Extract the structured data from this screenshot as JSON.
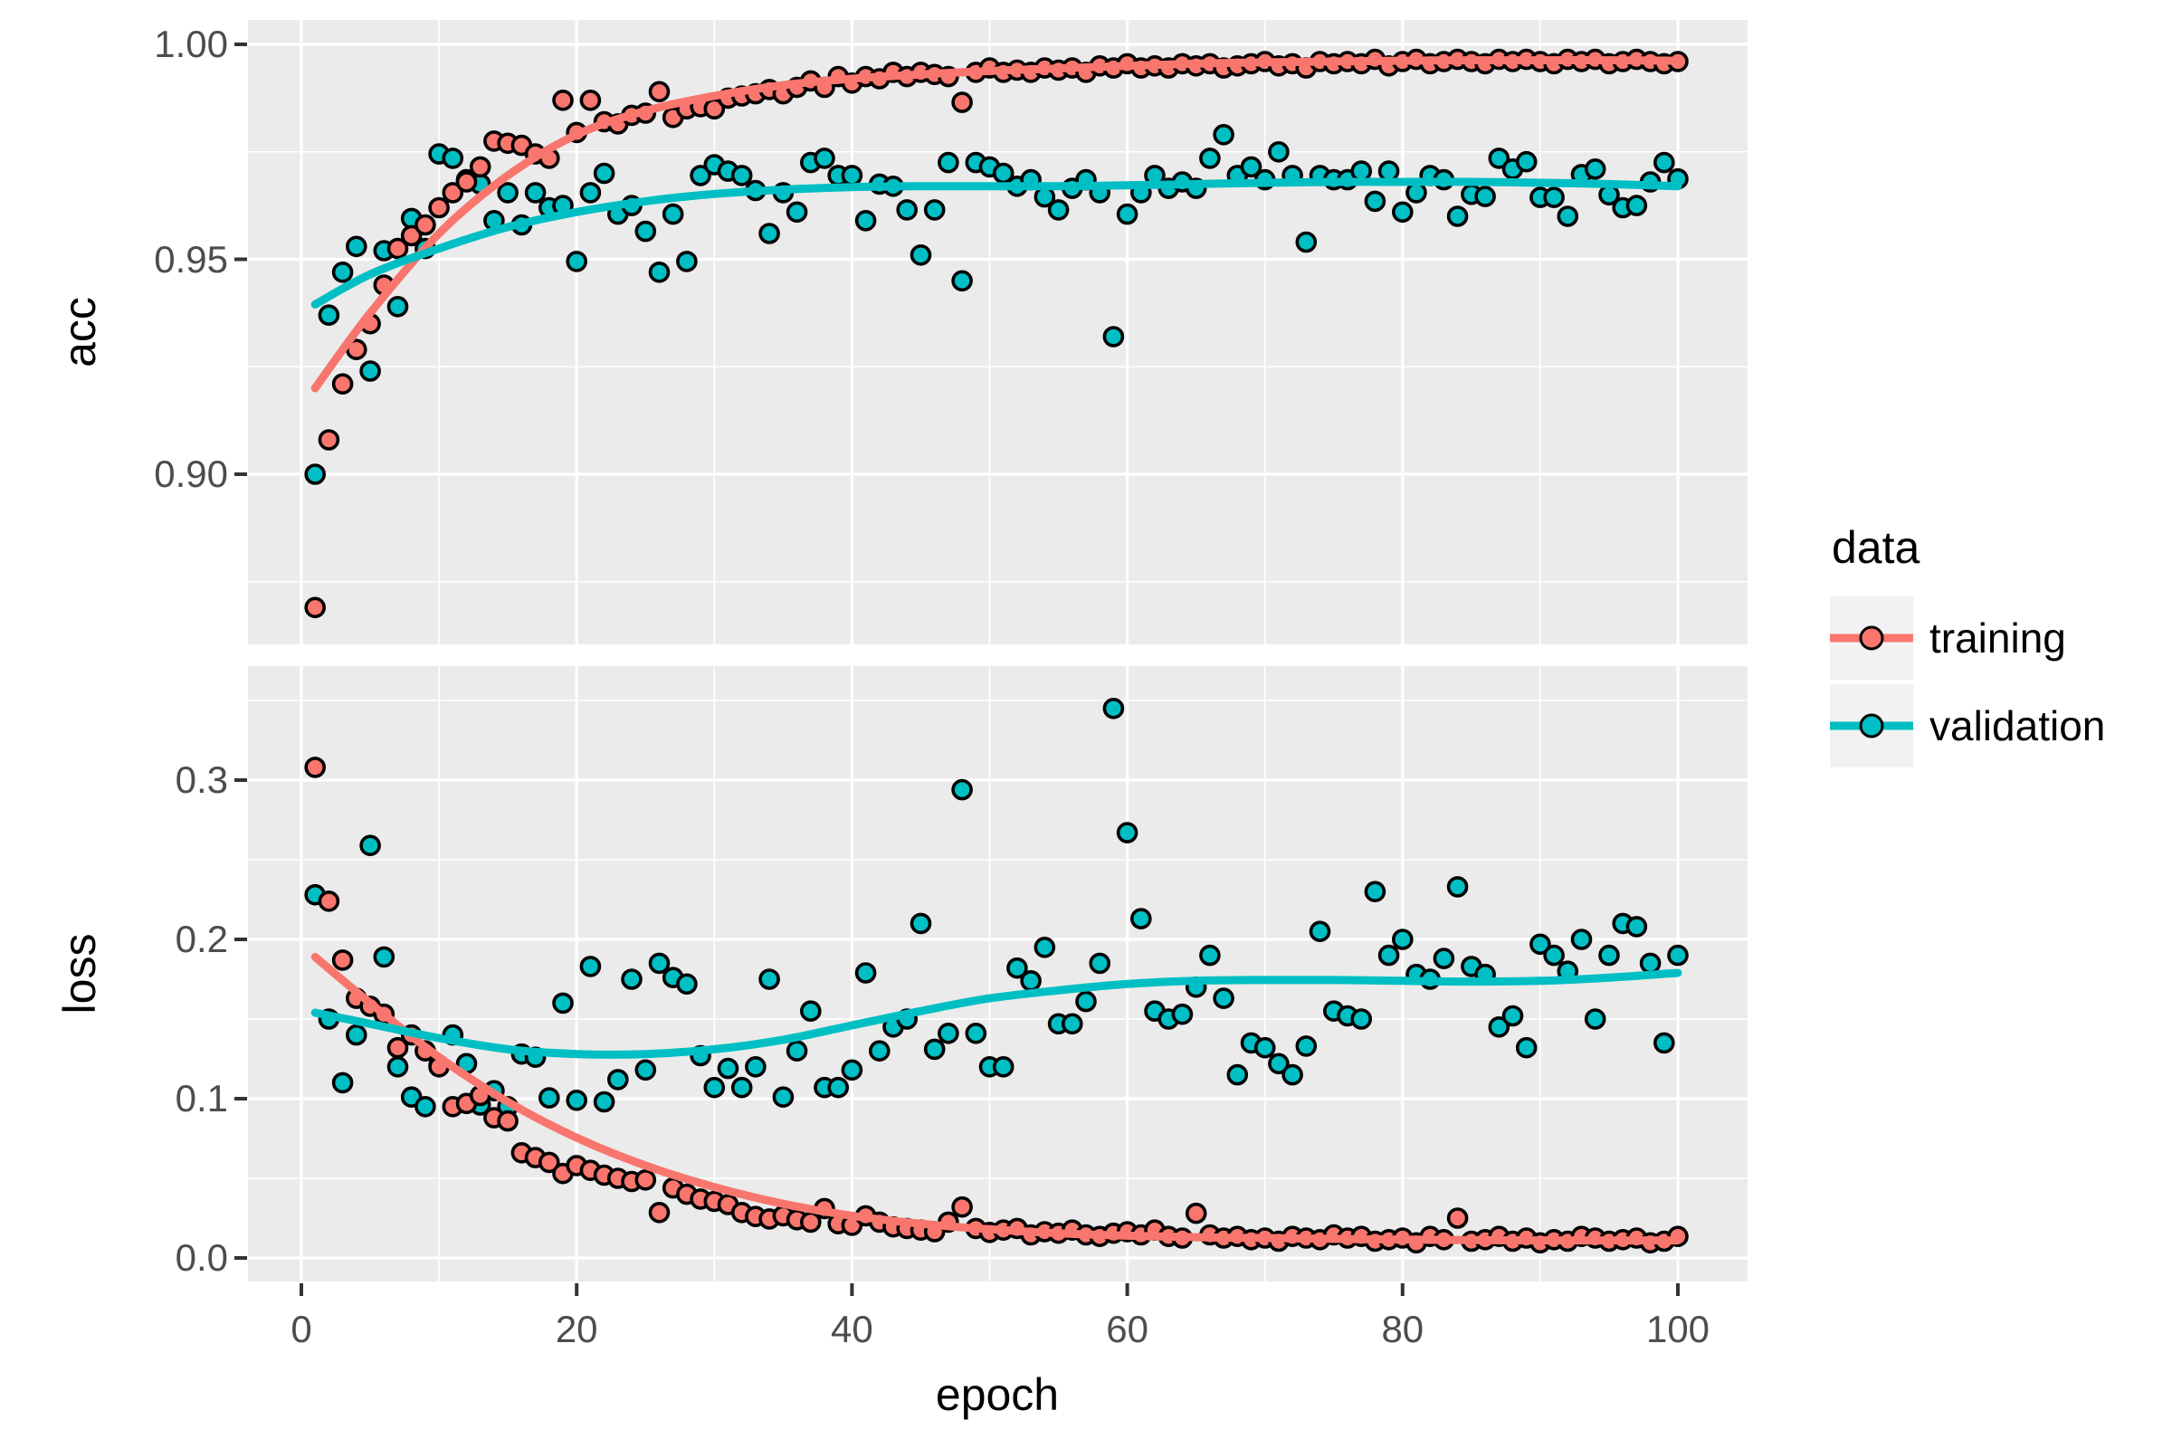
{
  "colors": {
    "training": "#F8766D",
    "validation": "#00BFC4",
    "panel_background": "#EBEBEB",
    "grid": "#FFFFFF",
    "tick_label": "#4D4D4D",
    "tick_mark": "#333333",
    "point_stroke": "#000000",
    "legend_key_background": "#F2F2F2",
    "text": "#000000"
  },
  "legend": {
    "title": "data",
    "items": [
      {
        "label": "training",
        "color": "#F8766D"
      },
      {
        "label": "validation",
        "color": "#00BFC4"
      }
    ]
  },
  "axes": {
    "x": {
      "title": "epoch",
      "tick_labels": [
        "0",
        "20",
        "40",
        "60",
        "80",
        "100"
      ],
      "tick_values": [
        0,
        20,
        40,
        60,
        80,
        100
      ],
      "minor_values": [
        10,
        30,
        50,
        70,
        90
      ],
      "range": [
        1,
        100
      ]
    },
    "facets": [
      {
        "label": "acc",
        "tick_labels": [
          "1.00",
          "0.95",
          "0.90"
        ],
        "tick_values": [
          1.0,
          0.95,
          0.9
        ],
        "minor_values": [
          0.975,
          0.925,
          0.875
        ],
        "approx_limits": [
          0.86,
          1.006
        ]
      },
      {
        "label": "loss",
        "tick_labels": [
          "0.3",
          "0.2",
          "0.1",
          "0.0"
        ],
        "tick_values": [
          0.3,
          0.2,
          0.1,
          0.0
        ],
        "minor_values": [
          0.35,
          0.25,
          0.15,
          0.05
        ],
        "approx_limits": [
          -0.015,
          0.372
        ]
      }
    ]
  },
  "chart_data": [
    {
      "facet": "acc",
      "type": "scatter",
      "smoother": "loess",
      "grid": "on",
      "epoch_min": 1,
      "epoch_max": 100,
      "series": [
        {
          "name": "training",
          "color": "#F8766D",
          "values": [
            0.869,
            0.908,
            0.921,
            0.929,
            0.935,
            0.944,
            0.9525,
            0.9555,
            0.958,
            0.962,
            0.9655,
            0.968,
            0.9715,
            0.9775,
            0.977,
            0.9765,
            0.9745,
            0.9735,
            0.987,
            0.9795,
            0.987,
            0.982,
            0.9815,
            0.9835,
            0.984,
            0.989,
            0.983,
            0.985,
            0.9855,
            0.985,
            0.9875,
            0.988,
            0.9885,
            0.9895,
            0.9885,
            0.99,
            0.9915,
            0.99,
            0.9925,
            0.991,
            0.9925,
            0.992,
            0.9935,
            0.9925,
            0.9935,
            0.993,
            0.9925,
            0.9865,
            0.9935,
            0.9945,
            0.9935,
            0.994,
            0.9935,
            0.9945,
            0.994,
            0.9945,
            0.9935,
            0.995,
            0.9945,
            0.9955,
            0.9945,
            0.995,
            0.9945,
            0.9955,
            0.995,
            0.9955,
            0.9945,
            0.995,
            0.9955,
            0.996,
            0.995,
            0.9955,
            0.9945,
            0.996,
            0.9955,
            0.996,
            0.9955,
            0.9965,
            0.995,
            0.996,
            0.9965,
            0.9955,
            0.996,
            0.9965,
            0.996,
            0.9955,
            0.9965,
            0.996,
            0.9965,
            0.996,
            0.9955,
            0.9965,
            0.996,
            0.9965,
            0.9955,
            0.996,
            0.9965,
            0.996,
            0.9955,
            0.996
          ]
        },
        {
          "name": "validation",
          "color": "#00BFC4",
          "values": [
            0.9,
            0.937,
            0.947,
            0.953,
            0.924,
            0.952,
            0.939,
            0.9595,
            0.9525,
            0.9745,
            0.9735,
            0.9685,
            0.9675,
            0.959,
            0.9655,
            0.958,
            0.9655,
            0.962,
            0.9625,
            0.9495,
            0.9655,
            0.97,
            0.9605,
            0.9625,
            0.9565,
            0.947,
            0.9605,
            0.9495,
            0.9695,
            0.972,
            0.9705,
            0.9695,
            0.966,
            0.956,
            0.9655,
            0.961,
            0.9725,
            0.9735,
            0.9695,
            0.9695,
            0.959,
            0.9675,
            0.967,
            0.9615,
            0.951,
            0.9615,
            0.9725,
            0.945,
            0.9725,
            0.9715,
            0.97,
            0.967,
            0.9685,
            0.9645,
            0.9615,
            0.9665,
            0.9685,
            0.9655,
            0.932,
            0.9605,
            0.9655,
            0.9695,
            0.9665,
            0.968,
            0.9665,
            0.9735,
            0.979,
            0.9695,
            0.9715,
            0.9685,
            0.975,
            0.9695,
            0.954,
            0.9695,
            0.9685,
            0.9685,
            0.9705,
            0.9635,
            0.9705,
            0.961,
            0.9655,
            0.9695,
            0.9685,
            0.96,
            0.9651,
            0.9646,
            0.9735,
            0.971,
            0.9727,
            0.9644,
            0.9644,
            0.96,
            0.9697,
            0.971,
            0.965,
            0.962,
            0.9625,
            0.968,
            0.9725,
            0.9687
          ]
        }
      ],
      "smooth": {
        "x": [
          1,
          5,
          10,
          15,
          20,
          25,
          30,
          35,
          40,
          45,
          50,
          55,
          60,
          65,
          70,
          75,
          80,
          85,
          90,
          95,
          100
        ],
        "training": [
          0.92,
          0.9375,
          0.956,
          0.9695,
          0.979,
          0.9845,
          0.988,
          0.9905,
          0.992,
          0.993,
          0.9938,
          0.9944,
          0.995,
          0.9955,
          0.9958,
          0.996,
          0.9962,
          0.9963,
          0.9963,
          0.9963,
          0.9962
        ],
        "validation": [
          0.9395,
          0.9465,
          0.9525,
          0.9575,
          0.961,
          0.9635,
          0.9652,
          0.9662,
          0.9668,
          0.967,
          0.967,
          0.967,
          0.9672,
          0.9675,
          0.9678,
          0.968,
          0.968,
          0.968,
          0.9678,
          0.9675,
          0.967
        ]
      }
    },
    {
      "facet": "loss",
      "type": "scatter",
      "smoother": "loess",
      "grid": "on",
      "epoch_min": 1,
      "epoch_max": 100,
      "series": [
        {
          "name": "training",
          "color": "#F8766D",
          "values": [
            0.308,
            0.224,
            0.187,
            0.163,
            0.158,
            0.153,
            0.132,
            0.14,
            0.13,
            0.12,
            0.095,
            0.097,
            0.102,
            0.088,
            0.086,
            0.066,
            0.063,
            0.06,
            0.053,
            0.058,
            0.055,
            0.052,
            0.05,
            0.048,
            0.049,
            0.0285,
            0.044,
            0.04,
            0.037,
            0.0355,
            0.0335,
            0.0285,
            0.026,
            0.0245,
            0.0265,
            0.024,
            0.0225,
            0.031,
            0.0215,
            0.0205,
            0.0265,
            0.0225,
            0.0195,
            0.0185,
            0.0175,
            0.0165,
            0.0225,
            0.032,
            0.0185,
            0.016,
            0.0175,
            0.0185,
            0.0145,
            0.0165,
            0.0155,
            0.0175,
            0.0145,
            0.0135,
            0.0155,
            0.0165,
            0.0145,
            0.0175,
            0.0135,
            0.0125,
            0.028,
            0.0145,
            0.0125,
            0.0135,
            0.0115,
            0.0125,
            0.0105,
            0.0135,
            0.0125,
            0.0115,
            0.0145,
            0.0125,
            0.0135,
            0.0105,
            0.0115,
            0.0125,
            0.0095,
            0.0135,
            0.0115,
            0.025,
            0.0105,
            0.0115,
            0.0135,
            0.0105,
            0.0125,
            0.0095,
            0.0115,
            0.0105,
            0.0135,
            0.0125,
            0.0105,
            0.0115,
            0.0125,
            0.0095,
            0.0105,
            0.0135
          ]
        },
        {
          "name": "validation",
          "color": "#00BFC4",
          "values": [
            0.228,
            0.15,
            0.11,
            0.14,
            0.259,
            0.189,
            0.12,
            0.101,
            0.095,
            0.121,
            0.14,
            0.122,
            0.096,
            0.105,
            0.095,
            0.128,
            0.126,
            0.1005,
            0.16,
            0.099,
            0.183,
            0.098,
            0.112,
            0.175,
            0.118,
            0.185,
            0.176,
            0.172,
            0.127,
            0.107,
            0.119,
            0.107,
            0.12,
            0.175,
            0.101,
            0.13,
            0.155,
            0.107,
            0.107,
            0.118,
            0.179,
            0.13,
            0.145,
            0.15,
            0.21,
            0.131,
            0.141,
            0.294,
            0.141,
            0.12,
            0.12,
            0.182,
            0.174,
            0.195,
            0.147,
            0.147,
            0.161,
            0.185,
            0.345,
            0.267,
            0.213,
            0.155,
            0.15,
            0.153,
            0.17,
            0.19,
            0.163,
            0.115,
            0.135,
            0.132,
            0.122,
            0.115,
            0.133,
            0.205,
            0.155,
            0.152,
            0.15,
            0.23,
            0.19,
            0.2,
            0.178,
            0.175,
            0.188,
            0.233,
            0.183,
            0.178,
            0.145,
            0.152,
            0.132,
            0.197,
            0.19,
            0.18,
            0.2,
            0.15,
            0.19,
            0.21,
            0.208,
            0.185,
            0.135,
            0.19
          ]
        }
      ],
      "smooth": {
        "x": [
          1,
          5,
          10,
          15,
          20,
          25,
          30,
          35,
          40,
          45,
          50,
          55,
          60,
          65,
          70,
          75,
          80,
          85,
          90,
          95,
          100
        ],
        "training": [
          0.189,
          0.16,
          0.126,
          0.098,
          0.0755,
          0.058,
          0.0445,
          0.034,
          0.0265,
          0.0215,
          0.018,
          0.0155,
          0.014,
          0.013,
          0.0125,
          0.012,
          0.0115,
          0.0112,
          0.011,
          0.011,
          0.011
        ],
        "validation": [
          0.154,
          0.147,
          0.138,
          0.131,
          0.128,
          0.128,
          0.131,
          0.137,
          0.146,
          0.155,
          0.163,
          0.168,
          0.172,
          0.174,
          0.1745,
          0.1745,
          0.174,
          0.1735,
          0.174,
          0.176,
          0.179
        ]
      }
    }
  ]
}
